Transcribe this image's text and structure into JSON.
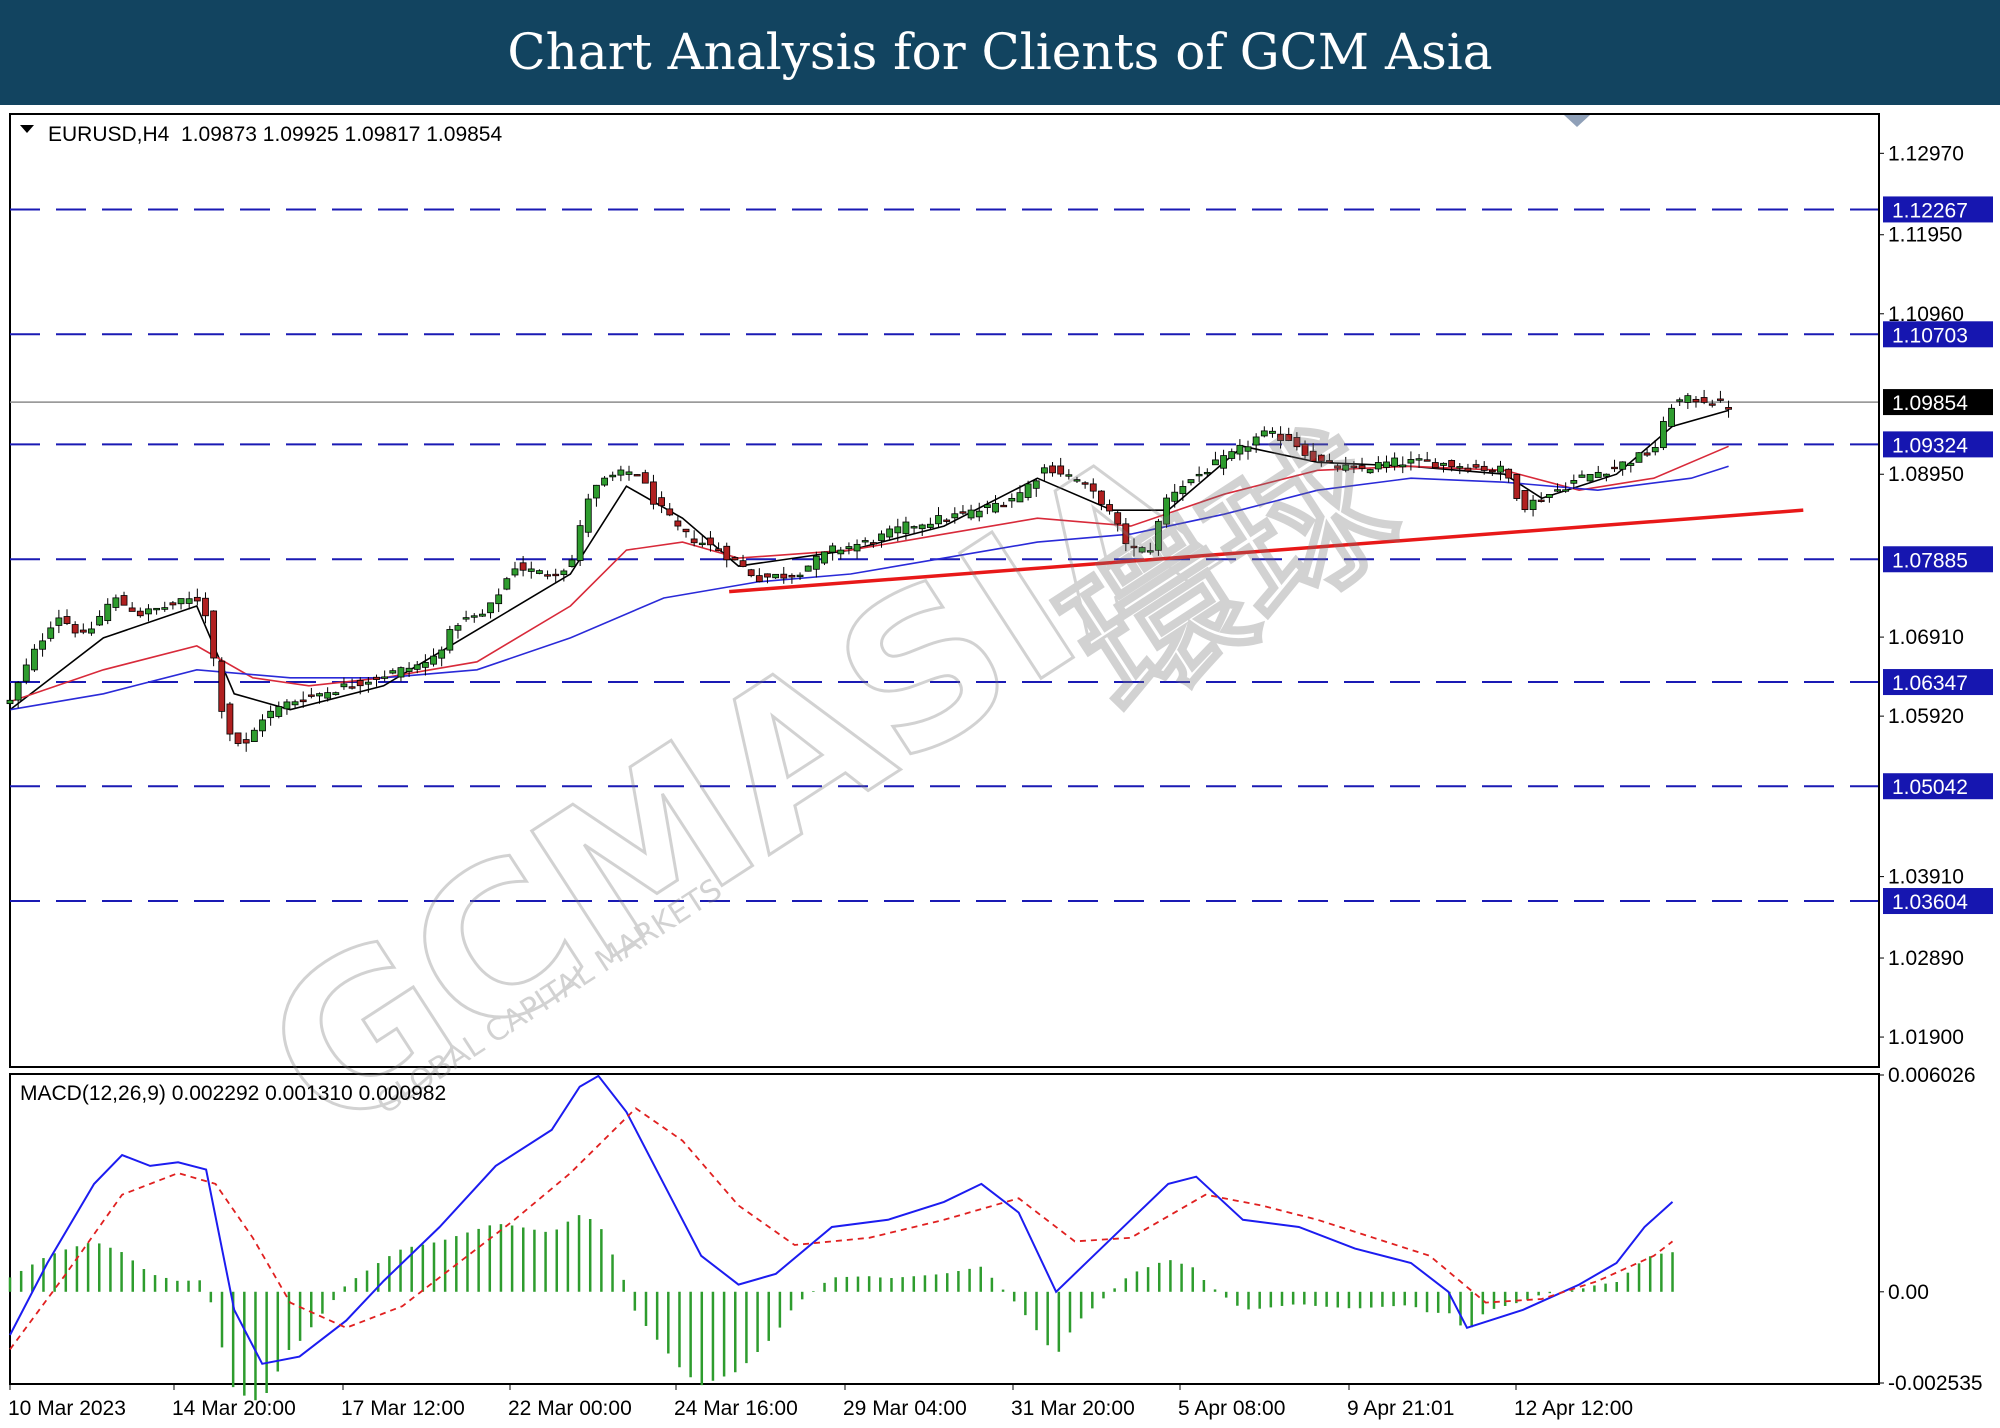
{
  "header": {
    "title": "Chart Analysis for Clients of GCM Asia"
  },
  "colors": {
    "header_bg": "#124460",
    "level_line": "#1a1ab4",
    "level_tag_bg": "#1616b0",
    "price_line": "#8c8c8c",
    "price_tag_bg": "#000000",
    "candle_bull": "#2e9c2e",
    "candle_bear": "#b02020",
    "ma_fast": "#000000",
    "ma_mid": "#d82a3a",
    "ma_slow": "#2a2ad8",
    "trendline": "#e81818",
    "macd_line": "#1c1cf0",
    "signal_line": "#e02020",
    "histogram": "#2e9c2e"
  },
  "watermark": {
    "text": "GCMASIA",
    "cjk": "環球",
    "sub": "GLOBAL CAPITAL MARKETS"
  },
  "chart_data": [
    {
      "type": "candlestick",
      "symbol_info": "EURUSD,H4  1.09873 1.09925 1.09817 1.09854",
      "ylim": [
        1.0155,
        1.1345
      ],
      "y_ticks": [
        "1.12970",
        "1.11950",
        "1.10960",
        "1.08950",
        "1.06910",
        "1.05920",
        "1.03910",
        "1.02890",
        "1.01900"
      ],
      "x_ticks": [
        "10 Mar 2023",
        "14 Mar 20:00",
        "17 Mar 12:00",
        "22 Mar 00:00",
        "24 Mar 16:00",
        "29 Mar 04:00",
        "31 Mar 20:00",
        "5 Apr 08:00",
        "9 Apr 21:01",
        "12 Apr 12:00"
      ],
      "current_price": {
        "value": 1.09854,
        "label": "1.09854"
      },
      "levels": [
        {
          "value": 1.12267,
          "label": "1.12267"
        },
        {
          "value": 1.10703,
          "label": "1.10703"
        },
        {
          "value": 1.09324,
          "label": "1.09324"
        },
        {
          "value": 1.07885,
          "label": "1.07885"
        },
        {
          "value": 1.06347,
          "label": "1.06347"
        },
        {
          "value": 1.05042,
          "label": "1.05042"
        },
        {
          "value": 1.03604,
          "label": "1.03604"
        }
      ],
      "trendline": {
        "from": {
          "bar": 0.385,
          "price": 1.0748
        },
        "to": {
          "bar": 0.96,
          "price": 1.085
        }
      },
      "close_path": [
        [
          0.0,
          1.061
        ],
        [
          0.01,
          1.066
        ],
        [
          0.025,
          1.072
        ],
        [
          0.04,
          1.069
        ],
        [
          0.055,
          1.074
        ],
        [
          0.07,
          1.072
        ],
        [
          0.085,
          1.073
        ],
        [
          0.1,
          1.074
        ],
        [
          0.105,
          1.072
        ],
        [
          0.115,
          1.058
        ],
        [
          0.125,
          1.055
        ],
        [
          0.135,
          1.059
        ],
        [
          0.15,
          1.061
        ],
        [
          0.165,
          1.062
        ],
        [
          0.18,
          1.063
        ],
        [
          0.195,
          1.064
        ],
        [
          0.21,
          1.065
        ],
        [
          0.225,
          1.066
        ],
        [
          0.24,
          1.071
        ],
        [
          0.255,
          1.072
        ],
        [
          0.27,
          1.078
        ],
        [
          0.285,
          1.077
        ],
        [
          0.3,
          1.078
        ],
        [
          0.31,
          1.087
        ],
        [
          0.32,
          1.089
        ],
        [
          0.335,
          1.09
        ],
        [
          0.345,
          1.086
        ],
        [
          0.36,
          1.082
        ],
        [
          0.38,
          1.08
        ],
        [
          0.4,
          1.0765
        ],
        [
          0.42,
          1.077
        ],
        [
          0.44,
          1.08
        ],
        [
          0.46,
          1.081
        ],
        [
          0.48,
          1.083
        ],
        [
          0.5,
          1.084
        ],
        [
          0.52,
          1.085
        ],
        [
          0.54,
          1.087
        ],
        [
          0.555,
          1.0905
        ],
        [
          0.57,
          1.089
        ],
        [
          0.585,
          1.086
        ],
        [
          0.6,
          1.08
        ],
        [
          0.61,
          1.08
        ],
        [
          0.62,
          1.087
        ],
        [
          0.64,
          1.09
        ],
        [
          0.655,
          1.092
        ],
        [
          0.67,
          1.0945
        ],
        [
          0.685,
          1.094
        ],
        [
          0.7,
          1.091
        ],
        [
          0.72,
          1.09
        ],
        [
          0.74,
          1.091
        ],
        [
          0.76,
          1.091
        ],
        [
          0.78,
          1.0905
        ],
        [
          0.8,
          1.09
        ],
        [
          0.81,
          1.0855
        ],
        [
          0.82,
          1.0865
        ],
        [
          0.84,
          1.089
        ],
        [
          0.86,
          1.0905
        ],
        [
          0.88,
          1.0925
        ],
        [
          0.89,
          1.0985
        ],
        [
          0.905,
          1.099
        ],
        [
          0.92,
          1.098
        ]
      ],
      "moving_averages": [
        {
          "name": "MA fast",
          "points": [
            [
              0.0,
              1.06
            ],
            [
              0.05,
              1.069
            ],
            [
              0.1,
              1.073
            ],
            [
              0.12,
              1.062
            ],
            [
              0.15,
              1.06
            ],
            [
              0.2,
              1.063
            ],
            [
              0.25,
              1.07
            ],
            [
              0.3,
              1.077
            ],
            [
              0.33,
              1.088
            ],
            [
              0.36,
              1.084
            ],
            [
              0.39,
              1.078
            ],
            [
              0.45,
              1.08
            ],
            [
              0.5,
              1.083
            ],
            [
              0.55,
              1.089
            ],
            [
              0.59,
              1.085
            ],
            [
              0.62,
              1.085
            ],
            [
              0.66,
              1.093
            ],
            [
              0.7,
              1.091
            ],
            [
              0.75,
              1.0905
            ],
            [
              0.8,
              1.0895
            ],
            [
              0.82,
              1.0865
            ],
            [
              0.86,
              1.0895
            ],
            [
              0.89,
              1.0955
            ],
            [
              0.92,
              1.0975
            ]
          ]
        },
        {
          "name": "MA mid",
          "points": [
            [
              0.0,
              1.061
            ],
            [
              0.05,
              1.065
            ],
            [
              0.1,
              1.068
            ],
            [
              0.13,
              1.064
            ],
            [
              0.16,
              1.063
            ],
            [
              0.2,
              1.064
            ],
            [
              0.25,
              1.066
            ],
            [
              0.3,
              1.073
            ],
            [
              0.33,
              1.08
            ],
            [
              0.36,
              1.081
            ],
            [
              0.39,
              1.079
            ],
            [
              0.45,
              1.08
            ],
            [
              0.5,
              1.082
            ],
            [
              0.55,
              1.084
            ],
            [
              0.6,
              1.083
            ],
            [
              0.65,
              1.087
            ],
            [
              0.7,
              1.09
            ],
            [
              0.75,
              1.0905
            ],
            [
              0.8,
              1.09
            ],
            [
              0.84,
              1.0875
            ],
            [
              0.88,
              1.089
            ],
            [
              0.92,
              1.093
            ]
          ]
        },
        {
          "name": "MA slow",
          "points": [
            [
              0.0,
              1.06
            ],
            [
              0.05,
              1.062
            ],
            [
              0.1,
              1.065
            ],
            [
              0.15,
              1.064
            ],
            [
              0.2,
              1.064
            ],
            [
              0.25,
              1.065
            ],
            [
              0.3,
              1.069
            ],
            [
              0.35,
              1.074
            ],
            [
              0.4,
              1.076
            ],
            [
              0.45,
              1.077
            ],
            [
              0.5,
              1.079
            ],
            [
              0.55,
              1.081
            ],
            [
              0.6,
              1.082
            ],
            [
              0.65,
              1.0845
            ],
            [
              0.7,
              1.0875
            ],
            [
              0.75,
              1.089
            ],
            [
              0.8,
              1.0885
            ],
            [
              0.85,
              1.0875
            ],
            [
              0.9,
              1.089
            ],
            [
              0.92,
              1.0905
            ]
          ]
        }
      ]
    },
    {
      "type": "line",
      "indicator": "MACD(12,26,9) 0.002292 0.001310 0.000982",
      "ylim": [
        -0.002535,
        0.006026
      ],
      "y_ticks": [
        "0.006026",
        "0.00",
        "-0.002535"
      ],
      "series": [
        {
          "key": "macd",
          "points": [
            [
              0.0,
              -0.0012
            ],
            [
              0.02,
              0.0008
            ],
            [
              0.045,
              0.003
            ],
            [
              0.06,
              0.0038
            ],
            [
              0.075,
              0.0035
            ],
            [
              0.09,
              0.0036
            ],
            [
              0.105,
              0.0034
            ],
            [
              0.12,
              -0.0005
            ],
            [
              0.135,
              -0.002
            ],
            [
              0.155,
              -0.0018
            ],
            [
              0.18,
              -0.0008
            ],
            [
              0.2,
              0.0003
            ],
            [
              0.23,
              0.0018
            ],
            [
              0.26,
              0.0035
            ],
            [
              0.29,
              0.0045
            ],
            [
              0.305,
              0.0057
            ],
            [
              0.315,
              0.006
            ],
            [
              0.33,
              0.005
            ],
            [
              0.35,
              0.003
            ],
            [
              0.37,
              0.001
            ],
            [
              0.39,
              0.0002
            ],
            [
              0.41,
              0.0005
            ],
            [
              0.44,
              0.0018
            ],
            [
              0.47,
              0.002
            ],
            [
              0.5,
              0.0025
            ],
            [
              0.52,
              0.003
            ],
            [
              0.54,
              0.0022
            ],
            [
              0.56,
              0.0
            ],
            [
              0.58,
              0.001
            ],
            [
              0.6,
              0.002
            ],
            [
              0.62,
              0.003
            ],
            [
              0.635,
              0.0032
            ],
            [
              0.66,
              0.002
            ],
            [
              0.69,
              0.0018
            ],
            [
              0.72,
              0.0012
            ],
            [
              0.75,
              0.0008
            ],
            [
              0.77,
              0.0
            ],
            [
              0.78,
              -0.001
            ],
            [
              0.81,
              -0.0005
            ],
            [
              0.84,
              0.0002
            ],
            [
              0.86,
              0.0008
            ],
            [
              0.875,
              0.0018
            ],
            [
              0.89,
              0.0025
            ]
          ]
        },
        {
          "key": "signal",
          "points": [
            [
              0.0,
              -0.0016
            ],
            [
              0.03,
              0.0005
            ],
            [
              0.06,
              0.0027
            ],
            [
              0.09,
              0.0033
            ],
            [
              0.11,
              0.003
            ],
            [
              0.13,
              0.0015
            ],
            [
              0.15,
              -0.0003
            ],
            [
              0.18,
              -0.001
            ],
            [
              0.21,
              -0.0004
            ],
            [
              0.24,
              0.0008
            ],
            [
              0.27,
              0.002
            ],
            [
              0.3,
              0.0033
            ],
            [
              0.335,
              0.0051
            ],
            [
              0.36,
              0.0042
            ],
            [
              0.39,
              0.0024
            ],
            [
              0.42,
              0.0013
            ],
            [
              0.46,
              0.0015
            ],
            [
              0.5,
              0.002
            ],
            [
              0.54,
              0.0026
            ],
            [
              0.57,
              0.0014
            ],
            [
              0.6,
              0.0015
            ],
            [
              0.64,
              0.0027
            ],
            [
              0.67,
              0.0024
            ],
            [
              0.7,
              0.002
            ],
            [
              0.73,
              0.0015
            ],
            [
              0.76,
              0.001
            ],
            [
              0.79,
              -0.0003
            ],
            [
              0.82,
              -0.0002
            ],
            [
              0.85,
              0.0003
            ],
            [
              0.88,
              0.001
            ],
            [
              0.89,
              0.0014
            ]
          ]
        }
      ]
    }
  ]
}
